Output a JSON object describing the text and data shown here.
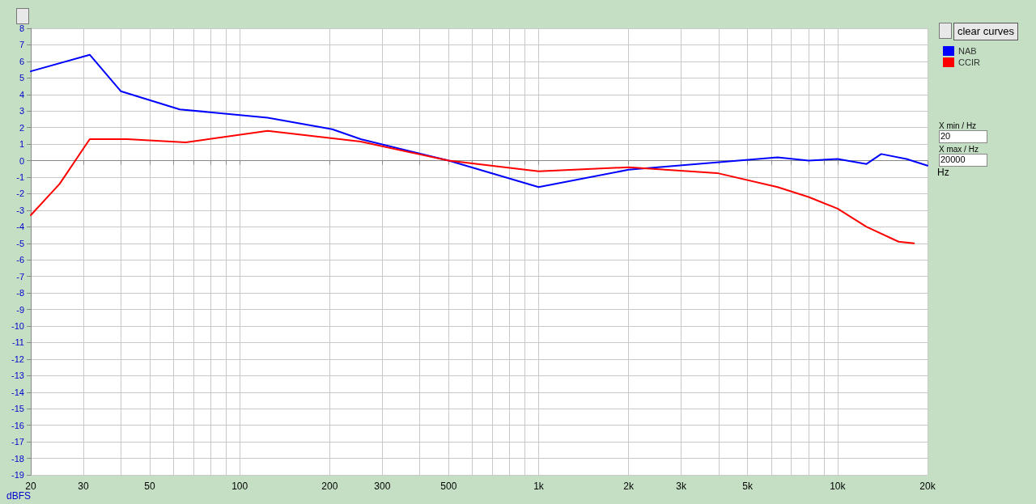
{
  "chart_data": {
    "type": "line",
    "ylabel": "dBFS",
    "log": "x",
    "grid": true,
    "legend": "right",
    "marker": "none",
    "line_style": "solid",
    "xlim": [
      20,
      20000
    ],
    "xticks": [
      20,
      30,
      {
        "value": 40,
        "label": null
      },
      50,
      {
        "value": 60,
        "label": null
      },
      {
        "value": 70,
        "label": null
      },
      {
        "value": 80,
        "label": null
      },
      {
        "value": 90,
        "label": null
      },
      100,
      200,
      300,
      {
        "value": 400,
        "label": null
      },
      500,
      {
        "value": 600,
        "label": null
      },
      {
        "value": 700,
        "label": null
      },
      {
        "value": 800,
        "label": null
      },
      {
        "value": 900,
        "label": null
      },
      {
        "value": 1000,
        "label": "1k"
      },
      {
        "value": 2000,
        "label": "2k"
      },
      {
        "value": 3000,
        "label": "3k"
      },
      {
        "value": 4000,
        "label": null
      },
      {
        "value": 5000,
        "label": "5k"
      },
      {
        "value": 6000,
        "label": null
      },
      {
        "value": 7000,
        "label": null
      },
      {
        "value": 8000,
        "label": null
      },
      {
        "value": 9000,
        "label": null
      },
      {
        "value": 10000,
        "label": "10k"
      },
      {
        "value": 20000,
        "label": "20k"
      }
    ],
    "xlabel": "Hz",
    "ylim": [
      -19,
      8
    ],
    "yticks": [
      -19,
      -18,
      -17,
      -16,
      -15,
      -14,
      -13,
      -12,
      -11,
      -10,
      -9,
      -8,
      -7,
      -6,
      -5,
      -4,
      -3,
      -2,
      -1,
      0,
      1,
      2,
      3,
      4,
      5,
      6,
      7,
      8
    ],
    "series": [
      {
        "name": "NAB",
        "color": "#0000ff",
        "x": [
          20,
          31.5,
          40,
          63,
          124,
          204,
          254,
          500,
          1000,
          2000,
          6300,
          8000,
          10000,
          12500,
          14000,
          17000,
          20000
        ],
        "values": [
          5.4,
          6.4,
          4.2,
          3.1,
          2.6,
          1.9,
          1.3,
          0,
          -1.6,
          -0.55,
          0.2,
          0,
          0.1,
          -0.2,
          0.4,
          0.1,
          -0.3
        ]
      },
      {
        "name": "CCIR",
        "color": "#ff0000",
        "x": [
          20,
          25,
          31.5,
          42,
          66,
          124,
          254,
          500,
          1000,
          2000,
          3950,
          6300,
          8000,
          10000,
          12500,
          16000,
          18000
        ],
        "values": [
          -3.3,
          -1.4,
          1.3,
          1.3,
          1.1,
          1.8,
          1.15,
          0,
          -0.65,
          -0.4,
          -0.75,
          -1.6,
          -2.2,
          -2.9,
          -4.0,
          -4.9,
          -5.0
        ]
      }
    ],
    "annotations": [
      "clear curves",
      "X min / Hz",
      "20",
      "X max / Hz",
      "20000"
    ]
  }
}
